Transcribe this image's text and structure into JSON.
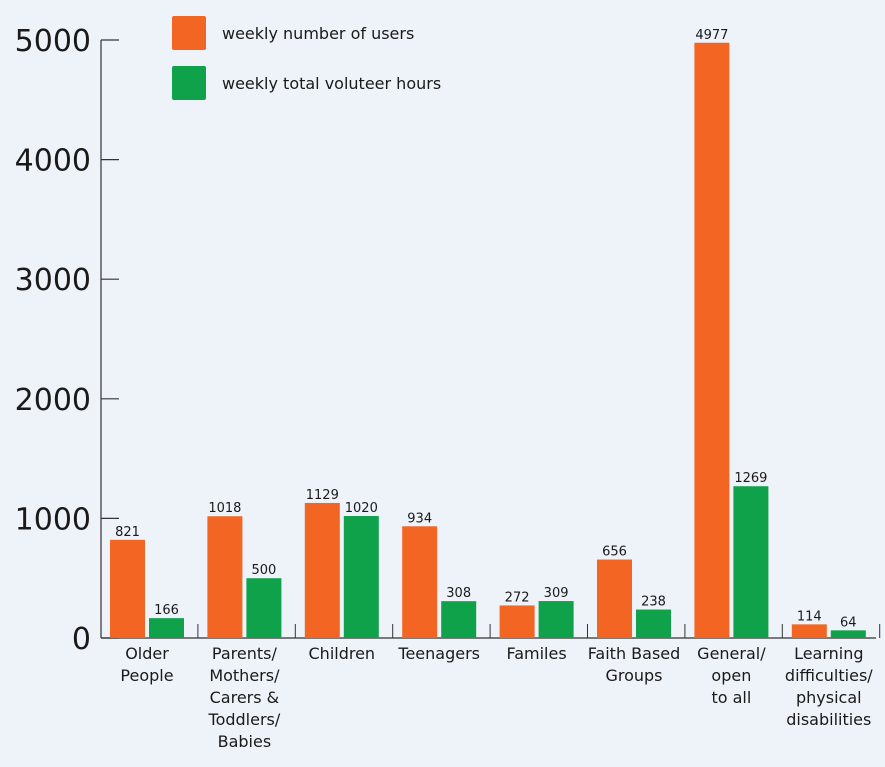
{
  "chart_data": {
    "type": "bar",
    "categories": [
      [
        "Older",
        "People"
      ],
      [
        "Parents/",
        "Mothers/",
        "Carers &",
        "Toddlers/",
        "Babies"
      ],
      [
        "Children"
      ],
      [
        "Teenagers"
      ],
      [
        "Familes"
      ],
      [
        "Faith Based",
        "Groups"
      ],
      [
        "General/",
        "open",
        "to all"
      ],
      [
        "Learning",
        "difficulties/",
        "physical",
        "disabilities"
      ]
    ],
    "series": [
      {
        "name": "weekly number of users",
        "color": "#f26522",
        "values": [
          821,
          1018,
          1129,
          934,
          272,
          656,
          4977,
          114
        ]
      },
      {
        "name": "weekly total voluteer hours",
        "color": "#10a24a",
        "values": [
          166,
          500,
          1020,
          308,
          309,
          238,
          1269,
          64
        ]
      }
    ],
    "yticks": [
      "0",
      "1000",
      "2000",
      "3000",
      "4000",
      "5000"
    ],
    "ylim": [
      0,
      5000
    ],
    "legend_position": "top-left",
    "grid": false
  }
}
